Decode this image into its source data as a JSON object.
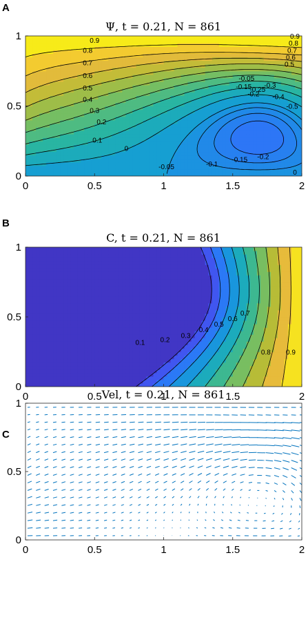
{
  "chart_data": [
    {
      "panel": "A",
      "type": "contour",
      "title": "Ψ, t = 0.21, N = 861",
      "xlim": [
        0,
        2
      ],
      "ylim": [
        0,
        1
      ],
      "xticks": [
        "0",
        "0.5",
        "1",
        "1.5",
        "2"
      ],
      "yticks": [
        "0",
        "0.5",
        "1"
      ],
      "colormap": "parula",
      "value_range": [
        -0.55,
        1.0
      ],
      "levels": [
        -0.5,
        -0.4,
        -0.35,
        -0.3,
        -0.25,
        -0.2,
        -0.15,
        -0.1,
        -0.05,
        0,
        0.1,
        0.2,
        0.3,
        0.4,
        0.5,
        0.6,
        0.7,
        0.8,
        0.9
      ],
      "contour_labels": [
        "0.9",
        "0.8",
        "0.7",
        "0.6",
        "0.5",
        "0.4",
        "0.3",
        "0.2",
        "0.1",
        "0",
        "0",
        "-0.05",
        "-0.1",
        "-0.15",
        "-0.2",
        "-0.05",
        "-0.15",
        "-0.2",
        "-0.25",
        "-0.3",
        "-0.4",
        "-0.5",
        "0.9",
        "0.8",
        "0.7",
        "0.6",
        "0.5"
      ]
    },
    {
      "panel": "B",
      "type": "contour",
      "title": "C, t = 0.21, N = 861",
      "xlim": [
        0,
        2
      ],
      "ylim": [
        0,
        1
      ],
      "xticks": [
        "0",
        "0.5",
        "1",
        "1.5",
        "2"
      ],
      "yticks": [
        "0",
        "0.5",
        "1"
      ],
      "colormap": "parula",
      "value_range": [
        0,
        1
      ],
      "levels": [
        0.1,
        0.2,
        0.3,
        0.4,
        0.5,
        0.6,
        0.7,
        0.8,
        0.9
      ],
      "contour_labels": [
        "0.1",
        "0.2",
        "0.3",
        "0.4",
        "0.5",
        "0.6",
        "0.7",
        "0.8",
        "0.9"
      ]
    },
    {
      "panel": "C",
      "type": "quiver",
      "title": "Vel, t = 0.21, N = 861",
      "xlim": [
        0,
        2
      ],
      "ylim": [
        0,
        1
      ],
      "xticks": [
        "0",
        "0.5",
        "1",
        "1.5",
        "2"
      ],
      "yticks": [
        "0",
        "0.5",
        "1"
      ],
      "arrow_color": "#0072BD",
      "grid": [
        33,
        18
      ]
    }
  ]
}
